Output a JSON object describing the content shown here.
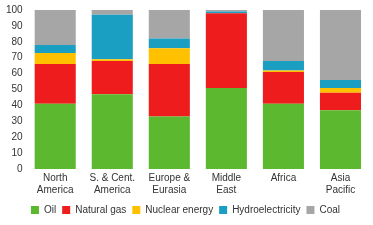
{
  "chart_data": {
    "type": "bar",
    "categories": [
      "North America",
      "S. & Cent. America",
      "Europe & Eurasia",
      "Middle East",
      "Africa",
      "Asia Pacific"
    ],
    "series": [
      {
        "name": "Oil",
        "color": "#5cb82e",
        "values": [
          41,
          47,
          33,
          51,
          41,
          37
        ]
      },
      {
        "name": "Natural gas",
        "color": "#ee1c1c",
        "values": [
          25,
          21,
          33,
          47,
          20,
          11
        ]
      },
      {
        "name": "Nuclear energy",
        "color": "#ffc000",
        "values": [
          7,
          1,
          10,
          0,
          1,
          3
        ]
      },
      {
        "name": "Hydroelectricity",
        "color": "#1a9fc2",
        "values": [
          5,
          28,
          6,
          1,
          6,
          5
        ]
      },
      {
        "name": "Coal",
        "color": "#a6a6a6",
        "values": [
          22,
          3,
          18,
          1,
          32,
          44
        ]
      }
    ],
    "stacked": true,
    "ylim": [
      0,
      100
    ],
    "yticks": [
      0,
      10,
      20,
      30,
      40,
      50,
      60,
      70,
      80,
      90,
      100
    ],
    "grid": false,
    "legend": "bottom"
  }
}
